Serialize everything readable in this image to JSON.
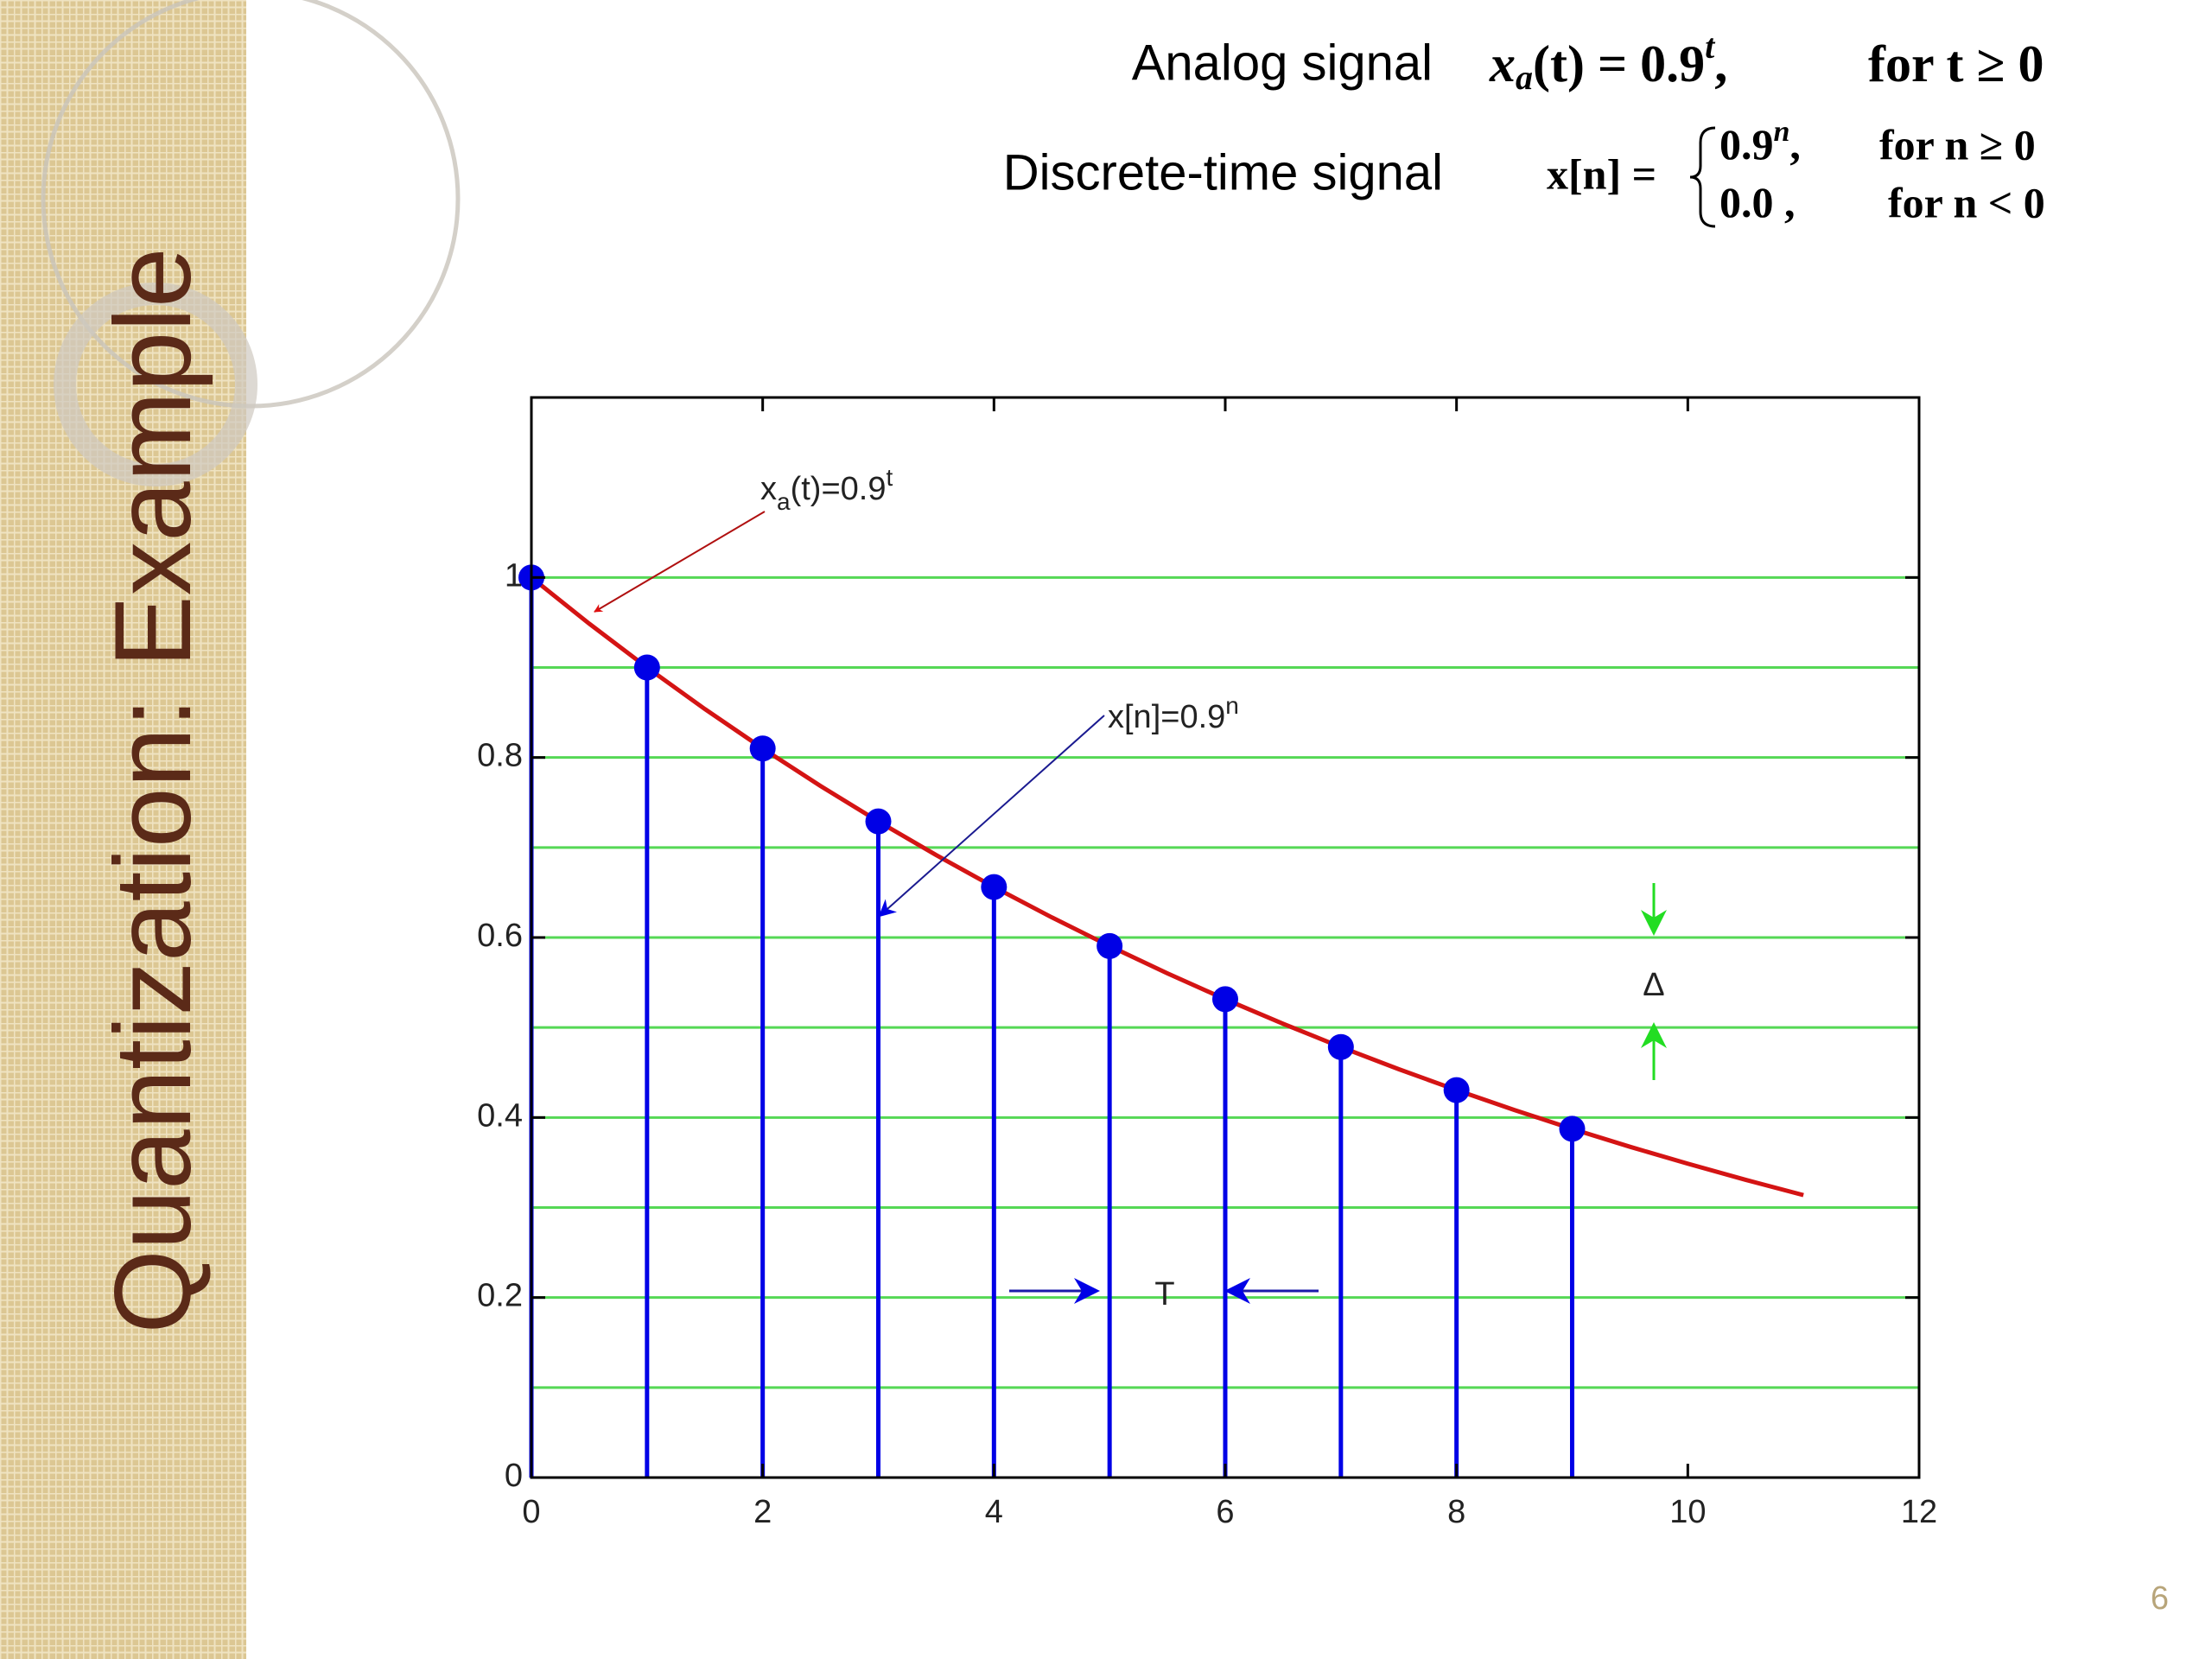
{
  "slide": {
    "title": "Quantization: Example",
    "page_number": "6"
  },
  "equations": {
    "analog_label": "Analog signal",
    "analog_formula": [
      "x",
      "a",
      "(t) = 0.9",
      "t",
      ","
    ],
    "analog_condition": "for t ≥ 0",
    "discrete_label": "Discrete-time signal",
    "discrete_lhs": "x[n] =",
    "discrete_cases": [
      {
        "expr": [
          "0.9",
          "n",
          ","
        ],
        "condition": "for n ≥ 0"
      },
      {
        "expr": [
          "0.0 ,"
        ],
        "condition": "for n < 0"
      }
    ]
  },
  "chart_data": {
    "type": "stem",
    "x": [
      0,
      1,
      2,
      3,
      4,
      5,
      6,
      7,
      8,
      9
    ],
    "values": [
      1,
      0.9,
      0.81,
      0.729,
      0.6561,
      0.59049,
      0.531441,
      0.4782969,
      0.43046721,
      0.387420489
    ],
    "color": "#0000e6",
    "curve": {
      "x": [
        0,
        0.5,
        1,
        1.5,
        2,
        2.5,
        3,
        3.5,
        4,
        4.5,
        5,
        5.5,
        6,
        6.5,
        7,
        7.5,
        8,
        8.5,
        9,
        9.5,
        10,
        10.5,
        11
      ],
      "values": [
        1,
        0.9487,
        0.9,
        0.8538,
        0.81,
        0.7684,
        0.729,
        0.6916,
        0.6561,
        0.6224,
        0.5905,
        0.5602,
        0.5314,
        0.5042,
        0.4783,
        0.4537,
        0.4305,
        0.4084,
        0.3874,
        0.3675,
        0.3487,
        0.3308,
        0.3138
      ],
      "color": "#d41414"
    },
    "levels": {
      "values": [
        0.1,
        0.2,
        0.3,
        0.4,
        0.5,
        0.6,
        0.7,
        0.8,
        0.9,
        1
      ],
      "color": "#55d855"
    },
    "xlim": [
      0,
      12
    ],
    "xticks": [
      0,
      2,
      4,
      6,
      8,
      10,
      12
    ],
    "ylim": [
      0,
      1.2
    ],
    "yticks": [
      0,
      0.2,
      0.4,
      0.6,
      0.8,
      1
    ],
    "annotations": {
      "analog": [
        "x",
        "a",
        "(t)=0.9",
        "t"
      ],
      "discrete": [
        "x[n]=0.9",
        "n"
      ],
      "period": "T",
      "step": "Δ"
    }
  }
}
